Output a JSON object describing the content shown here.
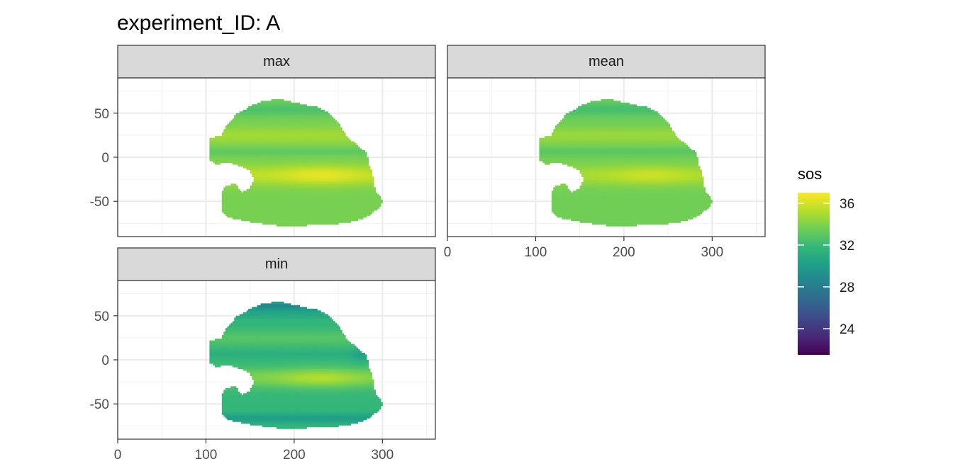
{
  "chart_data": {
    "type": "heatmap",
    "title": "experiment_ID: A",
    "xlim": [
      0,
      360
    ],
    "ylim": [
      -90,
      90
    ],
    "x_ticks": [
      0,
      100,
      200,
      300
    ],
    "x_tick_labels": [
      "0",
      "100",
      "200",
      "300"
    ],
    "y_ticks": [
      50,
      0,
      -50
    ],
    "y_tick_labels": [
      "50",
      "0",
      "-50"
    ],
    "grid": true,
    "panels": [
      {
        "label": "max",
        "min_enhance": 0,
        "description_values": {
          "equatorial_low": 33.6,
          "subtropical_high": 36.5,
          "southern_band": 33.8
        }
      },
      {
        "label": "mean",
        "min_enhance": 0,
        "description_values": {
          "equatorial_low": 33.4,
          "subtropical_high": 35.8,
          "southern_band": 33.6
        }
      },
      {
        "label": "min",
        "min_enhance": 1,
        "description_values": {
          "equatorial_low": 33.0,
          "subtropical_high": 35.2,
          "southern_band": 31.8
        }
      }
    ],
    "colorbar": {
      "title": "sos",
      "range": [
        21.5,
        37
      ],
      "ticks": [
        24,
        28,
        32,
        36
      ],
      "tick_labels": [
        "24",
        "28",
        "32",
        "36"
      ],
      "palette": "viridis",
      "palette_colors": [
        "#440154",
        "#482878",
        "#3e4989",
        "#31688e",
        "#26828e",
        "#1f9e89",
        "#35b779",
        "#6ece58",
        "#b5de2b",
        "#fde725"
      ]
    },
    "legend_position": "right"
  }
}
